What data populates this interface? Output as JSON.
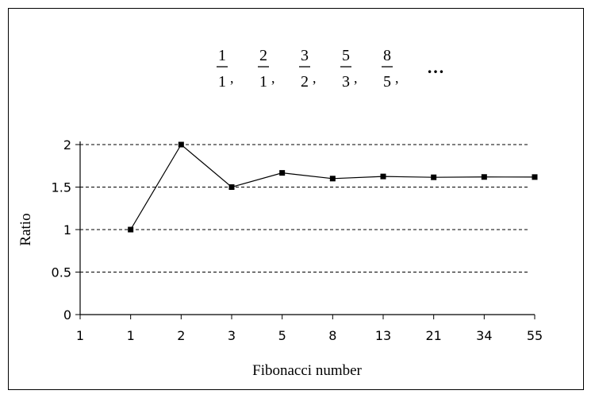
{
  "chart_data": {
    "type": "line",
    "title_fractions": [
      {
        "num": "1",
        "den": "1"
      },
      {
        "num": "2",
        "den": "1"
      },
      {
        "num": "3",
        "den": "2"
      },
      {
        "num": "5",
        "den": "3"
      },
      {
        "num": "8",
        "den": "5"
      }
    ],
    "title_ellipsis": "…",
    "xlabel": "Fibonacci number",
    "ylabel": "Ratio",
    "categories": [
      "1",
      "1",
      "2",
      "3",
      "5",
      "8",
      "13",
      "21",
      "34",
      "55"
    ],
    "series": [
      {
        "x": [
          "1",
          "2",
          "3",
          "5",
          "8",
          "13",
          "21",
          "34",
          "55"
        ],
        "values": [
          1,
          2,
          1.5,
          1.667,
          1.6,
          1.625,
          1.615,
          1.619,
          1.618
        ]
      }
    ],
    "yticks": [
      "0",
      "0.5",
      "1",
      "1.5",
      "2"
    ],
    "ylim": [
      0,
      2
    ],
    "gridlines": "dashed horizontal"
  }
}
